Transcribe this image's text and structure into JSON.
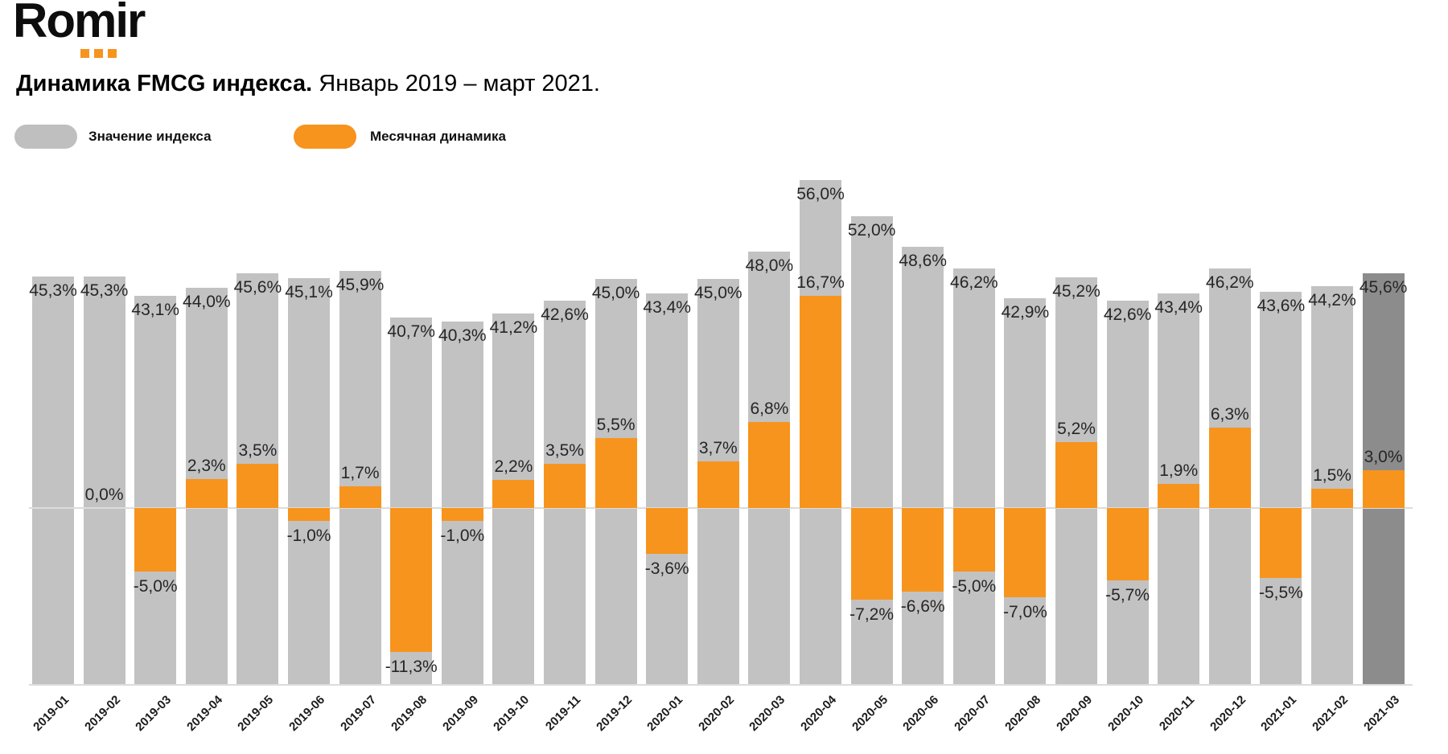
{
  "logo": {
    "text": "Romir"
  },
  "title": {
    "bold": "Динамика FMCG индекса.",
    "regular": "Январь 2019 – март 2021."
  },
  "legend": {
    "index": {
      "label": "Значение индекса",
      "color": "#BFBFBF"
    },
    "dynamics": {
      "label": "Месячная динамика",
      "color": "#F7941D"
    }
  },
  "colors": {
    "bar_gray": "#C2C2C2",
    "bar_gray_highlight": "#8C8C8C",
    "bar_orange": "#F7941D",
    "axis_line": "#DCDCDC",
    "label_text": "#262626"
  },
  "chart_data": {
    "type": "bar",
    "title": "Динамика FMCG индекса. Январь 2019 – март 2021.",
    "legend_position": "top-left",
    "grid": false,
    "highlight_last_bar": true,
    "baseline_value": 0,
    "categories": [
      "2019-01",
      "2019-02",
      "2019-03",
      "2019-04",
      "2019-05",
      "2019-06",
      "2019-07",
      "2019-08",
      "2019-09",
      "2019-10",
      "2019-11",
      "2019-12",
      "2020-01",
      "2020-02",
      "2020-03",
      "2020-04",
      "2020-05",
      "2020-06",
      "2020-07",
      "2020-08",
      "2020-09",
      "2020-10",
      "2020-11",
      "2020-12",
      "2021-01",
      "2021-02",
      "2021-03"
    ],
    "series": [
      {
        "name": "Значение индекса",
        "unit": "%",
        "values": [
          45.3,
          45.3,
          43.1,
          44.0,
          45.6,
          45.1,
          45.9,
          40.7,
          40.3,
          41.2,
          42.6,
          45.0,
          43.4,
          45.0,
          48.0,
          56.0,
          52.0,
          48.6,
          46.2,
          42.9,
          45.2,
          42.6,
          43.4,
          46.2,
          43.6,
          44.2,
          45.6
        ],
        "labels": [
          "45,3%",
          "45,3%",
          "43,1%",
          "44,0%",
          "45,6%",
          "45,1%",
          "45,9%",
          "40,7%",
          "40,3%",
          "41,2%",
          "42,6%",
          "45,0%",
          "43,4%",
          "45,0%",
          "48,0%",
          "56,0%",
          "52,0%",
          "48,6%",
          "46,2%",
          "42,9%",
          "45,2%",
          "42,6%",
          "43,4%",
          "46,2%",
          "43,6%",
          "44,2%",
          "45,6%"
        ]
      },
      {
        "name": "Месячная динамика",
        "unit": "%",
        "values": [
          null,
          0.0,
          -5.0,
          2.3,
          3.5,
          -1.0,
          1.7,
          -11.3,
          -1.0,
          2.2,
          3.5,
          5.5,
          -3.6,
          3.7,
          6.8,
          16.7,
          -7.2,
          -6.6,
          -5.0,
          -7.0,
          5.2,
          -5.7,
          1.9,
          6.3,
          -5.5,
          1.5,
          3.0
        ],
        "labels": [
          null,
          "0,0%",
          "-5,0%",
          "2,3%",
          "3,5%",
          "-1,0%",
          "1,7%",
          "-11,3%",
          "-1,0%",
          "2,2%",
          "3,5%",
          "5,5%",
          "-3,6%",
          "3,7%",
          "6,8%",
          "16,7%",
          "-7,2%",
          "-6,6%",
          "-5,0%",
          "-7,0%",
          "5,2%",
          "-5,7%",
          "1,9%",
          "6,3%",
          "-5,5%",
          "1,5%",
          "3,0%"
        ]
      }
    ]
  }
}
